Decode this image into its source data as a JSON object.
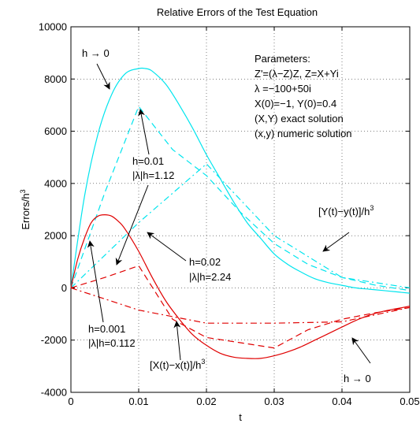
{
  "chart_data": {
    "type": "line",
    "title": "Relative Errors of the Test Equation",
    "xlabel": "t",
    "ylabel": "Errors/h^3",
    "xlim": [
      0,
      0.05
    ],
    "ylim": [
      -4000,
      10000
    ],
    "grid": true,
    "xticks": [
      0,
      0.01,
      0.02,
      0.03,
      0.04,
      0.05
    ],
    "xtick_labels": [
      "0",
      "0.01",
      "0.02",
      "0.03",
      "0.04",
      "0.05"
    ],
    "yticks": [
      -4000,
      -2000,
      0,
      2000,
      4000,
      6000,
      8000,
      10000
    ],
    "ytick_labels": [
      "-4000",
      "-2000",
      "0",
      "2000",
      "4000",
      "6000",
      "8000",
      "10000"
    ],
    "colors": {
      "Y": "#00e5ee",
      "X": "#e00000"
    },
    "series": [
      {
        "group": "Y",
        "style": "solid",
        "x": [
          0,
          0.002,
          0.004,
          0.006,
          0.008,
          0.01,
          0.011,
          0.012,
          0.014,
          0.016,
          0.018,
          0.02,
          0.022,
          0.024,
          0.026,
          0.028,
          0.03,
          0.032,
          0.034,
          0.036,
          0.038,
          0.04,
          0.042,
          0.044,
          0.046,
          0.048,
          0.05
        ],
        "y": [
          0,
          3500,
          5900,
          7400,
          8200,
          8400,
          8400,
          8300,
          7800,
          7000,
          6100,
          5100,
          4200,
          3300,
          2500,
          1900,
          1300,
          900,
          600,
          350,
          200,
          100,
          0,
          -50,
          -100,
          -150,
          -200
        ]
      },
      {
        "group": "Y",
        "style": "dashed",
        "x": [
          0,
          0.005,
          0.01,
          0.015,
          0.02,
          0.025,
          0.03,
          0.035,
          0.04,
          0.045,
          0.05
        ],
        "y": [
          0,
          3650,
          6950,
          5300,
          4300,
          2900,
          1700,
          900,
          400,
          100,
          -100
        ]
      },
      {
        "group": "Y",
        "style": "dashdot",
        "x": [
          0,
          0.01,
          0.02,
          0.03,
          0.04,
          0.05
        ],
        "y": [
          0,
          2500,
          4750,
          2000,
          400,
          0
        ]
      },
      {
        "group": "X",
        "style": "solid",
        "x": [
          0,
          0.001,
          0.002,
          0.003,
          0.004,
          0.005,
          0.006,
          0.007,
          0.008,
          0.01,
          0.012,
          0.014,
          0.016,
          0.018,
          0.02,
          0.022,
          0.024,
          0.026,
          0.028,
          0.03,
          0.032,
          0.034,
          0.036,
          0.038,
          0.04,
          0.042,
          0.044,
          0.046,
          0.048,
          0.05
        ],
        "y": [
          0,
          1100,
          1900,
          2500,
          2750,
          2800,
          2750,
          2550,
          2250,
          1400,
          400,
          -500,
          -1200,
          -1800,
          -2200,
          -2500,
          -2650,
          -2700,
          -2700,
          -2600,
          -2450,
          -2250,
          -2000,
          -1750,
          -1500,
          -1250,
          -1050,
          -900,
          -800,
          -700
        ]
      },
      {
        "group": "X",
        "style": "dashed",
        "x": [
          0,
          0.005,
          0.01,
          0.015,
          0.02,
          0.025,
          0.03,
          0.035,
          0.04,
          0.045,
          0.05
        ],
        "y": [
          0,
          400,
          850,
          -1200,
          -1900,
          -2100,
          -2300,
          -1600,
          -1200,
          -950,
          -750
        ]
      },
      {
        "group": "X",
        "style": "dashdot",
        "x": [
          0,
          0.01,
          0.02,
          0.03,
          0.04,
          0.05
        ],
        "y": [
          0,
          -850,
          -1350,
          -1350,
          -1300,
          -750
        ]
      }
    ],
    "annotations": {
      "h_to_0_top": "h → 0",
      "h_to_0_bottom": "h → 0",
      "params_title": "Parameters:",
      "params_line1": "Z'=(λ−Z)Z, Z=X+Yi",
      "params_line2": "λ =−100+50i",
      "params_line3": "X(0)=−1, Y(0)=0.4",
      "params_line4": "(X,Y) exact solution",
      "params_line5": "(x,y) numeric solution",
      "h001_a": "h=0.01",
      "h001_b": "|λ|h=1.12",
      "h002_a": "h=0.02",
      "h002_b": "|λ|h=2.24",
      "h0001_a": "h=0.001",
      "h0001_b": "|λ|h=0.112",
      "y_err_label": "[Y(t)−y(t)]/h",
      "x_err_label": "[X(t)−x(t)]/h",
      "cube": "3"
    }
  }
}
